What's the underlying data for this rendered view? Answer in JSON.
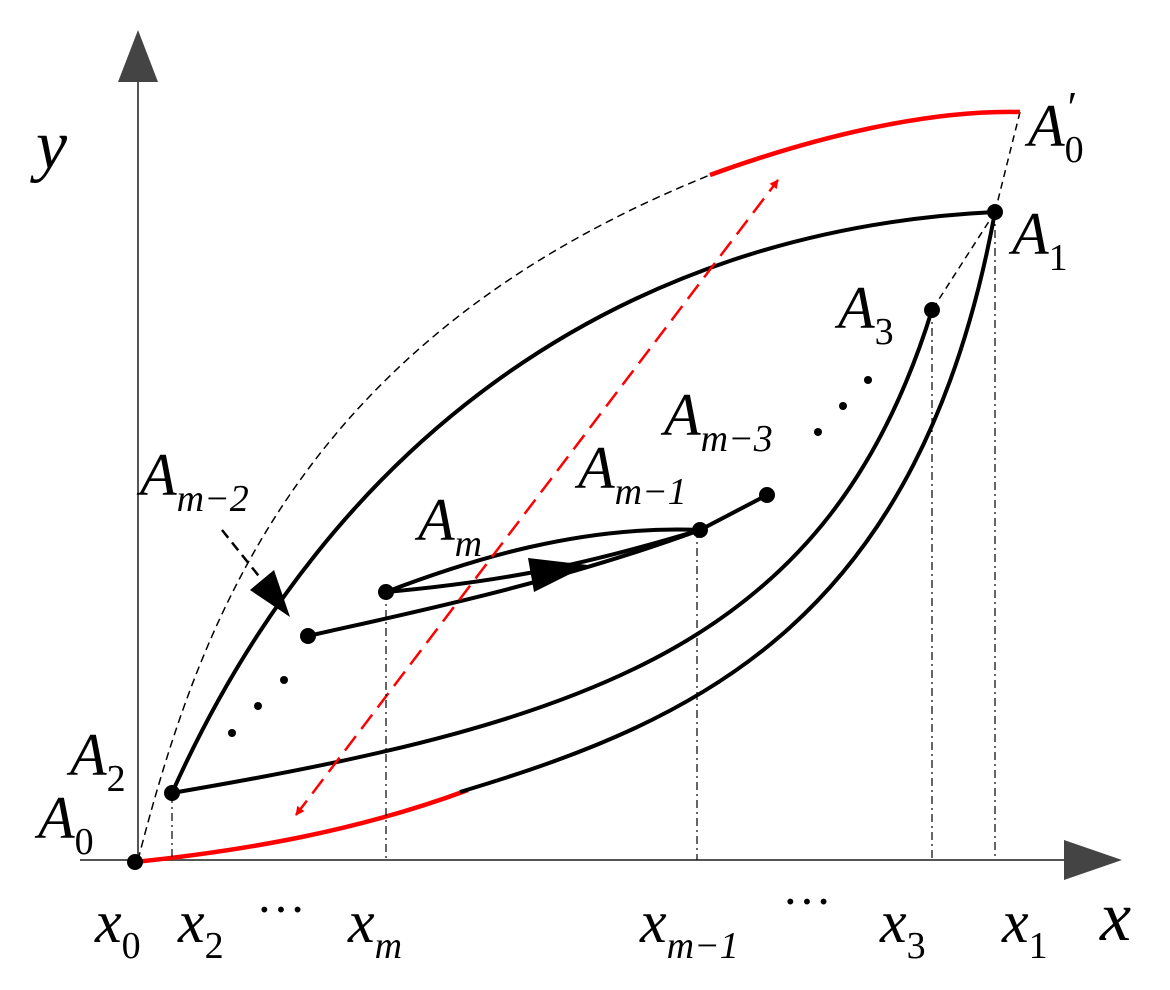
{
  "axes": {
    "x_label": "x",
    "y_label": "y"
  },
  "points": {
    "A0": {
      "base": "A",
      "sub": "0"
    },
    "A0p": {
      "base": "A",
      "sub": "0",
      "prime": "′"
    },
    "A1": {
      "base": "A",
      "sub": "1"
    },
    "A2": {
      "base": "A",
      "sub": "2"
    },
    "A3": {
      "base": "A",
      "sub": "3"
    },
    "Am": {
      "base": "A",
      "sub": "m"
    },
    "Am1": {
      "base": "A",
      "sub": "m−1"
    },
    "Am2": {
      "base": "A",
      "sub": "m−2"
    },
    "Am3": {
      "base": "A",
      "sub": "m−3"
    }
  },
  "ticks": {
    "x0": {
      "base": "x",
      "sub": "0"
    },
    "x2": {
      "base": "x",
      "sub": "2"
    },
    "xm": {
      "base": "x",
      "sub": "m"
    },
    "xm1": {
      "base": "x",
      "sub": "m−1"
    },
    "x3": {
      "base": "x",
      "sub": "3"
    },
    "x1": {
      "base": "x",
      "sub": "1"
    }
  },
  "ellipsis": "···",
  "colors": {
    "curve": "#000000",
    "highlight": "#ff0000",
    "axis": "#444444"
  }
}
